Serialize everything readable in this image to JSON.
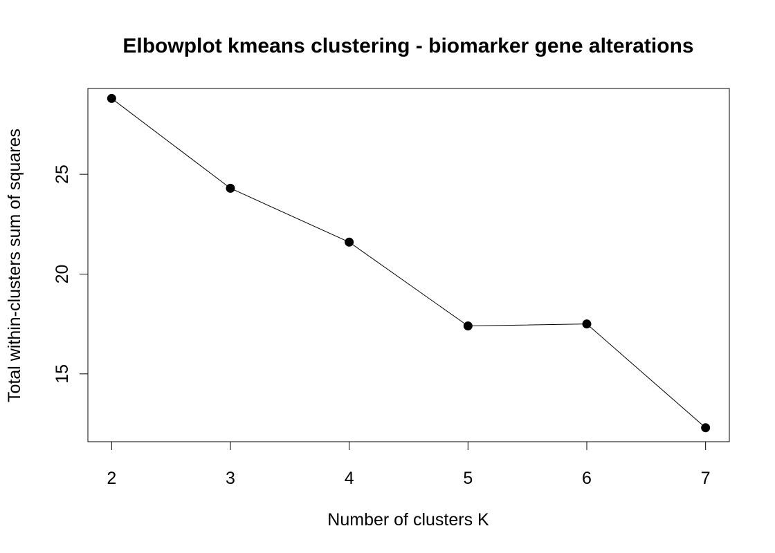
{
  "chart_data": {
    "type": "line",
    "title": "Elbowplot kmeans clustering - biomarker gene alterations",
    "xlabel": "Number of clusters K",
    "ylabel": "Total within-clusters sum of squares",
    "x": [
      2,
      3,
      4,
      5,
      6,
      7
    ],
    "y": [
      28.8,
      24.3,
      21.6,
      17.4,
      17.5,
      12.3
    ],
    "xlim": [
      1.8,
      7.2
    ],
    "ylim": [
      11.6,
      29.3
    ],
    "xticks": [
      "2",
      "3",
      "4",
      "5",
      "6",
      "7"
    ],
    "yticks": [
      "15",
      "20",
      "25"
    ],
    "grid": false,
    "marker": "filled-circle",
    "colors": {
      "line": "#000000",
      "points": "#000000"
    }
  }
}
